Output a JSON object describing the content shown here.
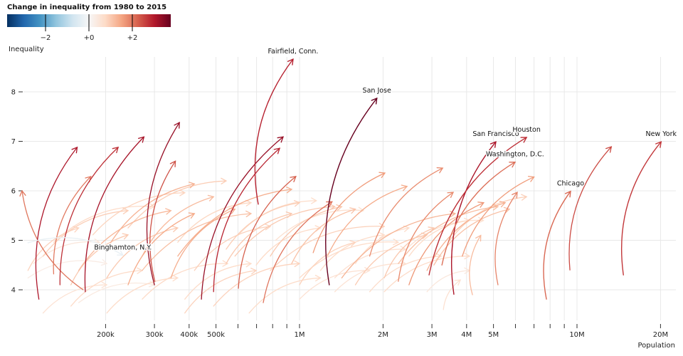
{
  "chart_data": {
    "type": "arrow",
    "title": "Change in inequality from 1980 to 2015",
    "xlabel": "Population",
    "ylabel": "Inequality",
    "xscale": "log",
    "xlim": [
      100000,
      23000000
    ],
    "ylim": [
      3.38,
      8.7
    ],
    "grid": true,
    "legend": {
      "title": "Change in inequality from 1980 to 2015",
      "placement": "top-left",
      "domain": [
        -3.77,
        3.77
      ],
      "ticks": [
        -2,
        0,
        2
      ],
      "tick_labels": [
        "−2",
        "+0",
        "+2"
      ],
      "colors": [
        "#053061",
        "#2166ac",
        "#4393c3",
        "#92c5de",
        "#d1e5f0",
        "#f7f7f7",
        "#fddbc7",
        "#f4a582",
        "#d6604d",
        "#b2182b",
        "#67001f"
      ]
    },
    "x_ticks": [
      {
        "value": 200000,
        "label": "200k"
      },
      {
        "value": 300000,
        "label": "300k"
      },
      {
        "value": 400000,
        "label": "400k"
      },
      {
        "value": 500000,
        "label": "500k"
      },
      {
        "value": 600000,
        "label": ""
      },
      {
        "value": 700000,
        "label": ""
      },
      {
        "value": 800000,
        "label": ""
      },
      {
        "value": 900000,
        "label": ""
      },
      {
        "value": 1000000,
        "label": "1M"
      },
      {
        "value": 2000000,
        "label": "2M"
      },
      {
        "value": 3000000,
        "label": "3M"
      },
      {
        "value": 4000000,
        "label": "4M"
      },
      {
        "value": 5000000,
        "label": "5M"
      },
      {
        "value": 6000000,
        "label": ""
      },
      {
        "value": 7000000,
        "label": ""
      },
      {
        "value": 8000000,
        "label": ""
      },
      {
        "value": 9000000,
        "label": ""
      },
      {
        "value": 10000000,
        "label": "10M"
      },
      {
        "value": 20000000,
        "label": "20M"
      }
    ],
    "y_ticks": [
      {
        "value": 4,
        "label": "4"
      },
      {
        "value": 5,
        "label": "5"
      },
      {
        "value": 6,
        "label": "6"
      },
      {
        "value": 7,
        "label": "7"
      },
      {
        "value": 8,
        "label": "8"
      }
    ],
    "labeled_cities": [
      {
        "name": "Fairfield, Conn.",
        "pop1980": 710000,
        "ineq1980": 5.73,
        "pop2015": 948000,
        "ineq2015": 8.66
      },
      {
        "name": "San Jose",
        "pop1980": 1280000,
        "ineq1980": 4.1,
        "pop2015": 1900000,
        "ineq2015": 7.87
      },
      {
        "name": "San Francisco",
        "pop1980": 3600000,
        "ineq1980": 3.91,
        "pop2015": 5100000,
        "ineq2015": 6.99
      },
      {
        "name": "Houston",
        "pop1980": 2930000,
        "ineq1980": 4.3,
        "pop2015": 6580000,
        "ineq2015": 7.08
      },
      {
        "name": "Washington, D.C.",
        "pop1980": 3260000,
        "ineq1980": 4.5,
        "pop2015": 5980000,
        "ineq2015": 6.58
      },
      {
        "name": "Chicago",
        "pop1980": 7760000,
        "ineq1980": 3.81,
        "pop2015": 9480000,
        "ineq2015": 5.99
      },
      {
        "name": "New York",
        "pop1980": 14700000,
        "ineq1980": 4.3,
        "pop2015": 20100000,
        "ineq2015": 6.99
      },
      {
        "name": "Binghamton, N.Y.",
        "pop1980": 105000,
        "ineq1980": 4.95,
        "pop2015": 231000,
        "ineq2015": 4.7
      }
    ],
    "other_cities_columns": [
      "pop1980_thousands",
      "ineq1980",
      "pop2015_thousands",
      "ineq2015"
    ],
    "other_cities": [
      [
        115,
        3.81,
        158,
        6.88
      ],
      [
        130,
        4.32,
        177,
        6.29
      ],
      [
        137,
        4.1,
        222,
        6.88
      ],
      [
        169,
        3.96,
        275,
        7.09
      ],
      [
        300,
        4.1,
        369,
        7.38
      ],
      [
        301,
        4.17,
        357,
        6.6
      ],
      [
        443,
        3.81,
        873,
        7.09
      ],
      [
        490,
        3.96,
        848,
        6.86
      ],
      [
        602,
        4.03,
        970,
        6.29
      ],
      [
        740,
        3.74,
        1310,
        5.78
      ],
      [
        1260,
        4.68,
        2440,
        6.09
      ],
      [
        1120,
        4.75,
        2030,
        6.36
      ],
      [
        1790,
        4.68,
        3280,
        6.46
      ],
      [
        2270,
        4.17,
        3580,
        5.97
      ],
      [
        241,
        5.25,
        544,
        6.2
      ],
      [
        202,
        4.82,
        418,
        6.14
      ],
      [
        160,
        4.39,
        344,
        5.6
      ],
      [
        364,
        4.68,
        937,
        6.03
      ],
      [
        271,
        4.39,
        669,
        5.54
      ],
      [
        585,
        4.68,
        1340,
        5.68
      ],
      [
        785,
        4.39,
        2020,
        5.28
      ],
      [
        1000,
        4.24,
        2270,
        4.96
      ],
      [
        1420,
        4.24,
        3640,
        5.54
      ],
      [
        2270,
        4.53,
        5190,
        5.68
      ],
      [
        2880,
        4.39,
        5510,
        5.76
      ],
      [
        3050,
        4.5,
        5710,
        5.63
      ],
      [
        3440,
        4.96,
        6580,
        5.88
      ],
      [
        3860,
        4.68,
        7000,
        6.28
      ],
      [
        2480,
        4.1,
        4610,
        5.76
      ],
      [
        1590,
        4.1,
        2880,
        5.11
      ],
      [
        2020,
        3.96,
        4100,
        4.68
      ],
      [
        119,
        3.53,
        202,
        4.1
      ],
      [
        150,
        3.67,
        271,
        4.39
      ],
      [
        202,
        3.53,
        364,
        4.24
      ],
      [
        271,
        3.81,
        551,
        4.53
      ],
      [
        386,
        3.53,
        698,
        4.39
      ],
      [
        490,
        3.67,
        1000,
        4.53
      ],
      [
        658,
        3.53,
        1190,
        4.24
      ],
      [
        1000,
        3.81,
        1790,
        4.39
      ],
      [
        1340,
        3.96,
        2410,
        4.53
      ],
      [
        1790,
        3.96,
        3240,
        4.68
      ],
      [
        2880,
        3.96,
        4100,
        4.39
      ],
      [
        166,
        4.0,
        100,
        6.0
      ],
      [
        150,
        4.1,
        241,
        5.11
      ],
      [
        202,
        4.24,
        364,
        5.25
      ],
      [
        241,
        4.1,
        418,
        5.54
      ],
      [
        344,
        4.24,
        585,
        5.63
      ],
      [
        418,
        4.39,
        785,
        5.28
      ],
      [
        544,
        4.53,
        937,
        5.54
      ],
      [
        698,
        4.5,
        1190,
        5.25
      ],
      [
        937,
        4.53,
        1590,
        5.63
      ],
      [
        1190,
        4.39,
        2020,
        5.11
      ],
      [
        1590,
        4.53,
        2480,
        5.25
      ],
      [
        105,
        4.39,
        160,
        5.25
      ],
      [
        119,
        4.68,
        241,
        5.6
      ],
      [
        271,
        4.68,
        490,
        5.88
      ],
      [
        364,
        4.96,
        669,
        5.76
      ],
      [
        544,
        4.82,
        1000,
        5.76
      ],
      [
        785,
        4.68,
        1420,
        5.68
      ],
      [
        1340,
        4.24,
        2410,
        4.82
      ],
      [
        105,
        4.24,
        202,
        4.53
      ],
      [
        160,
        3.74,
        300,
        4.1
      ],
      [
        386,
        3.81,
        669,
        4.53
      ],
      [
        1000,
        4.1,
        1590,
        4.96
      ],
      [
        2020,
        4.24,
        3050,
        5.25
      ],
      [
        5190,
        4.1,
        6090,
        5.97
      ],
      [
        9430,
        4.4,
        13300,
        6.89
      ],
      [
        2480,
        4.68,
        4100,
        5.4
      ],
      [
        130,
        4.96,
        300,
        5.68
      ],
      [
        180,
        5.11,
        386,
        5.96
      ],
      [
        110,
        4.53,
        190,
        4.96
      ],
      [
        820,
        5.0,
        1700,
        5.6
      ],
      [
        2400,
        4.8,
        4600,
        5.4
      ],
      [
        600,
        5.1,
        1150,
        5.8
      ],
      [
        3300,
        3.6,
        3800,
        4.2
      ],
      [
        4200,
        3.9,
        4500,
        5.1
      ]
    ]
  }
}
